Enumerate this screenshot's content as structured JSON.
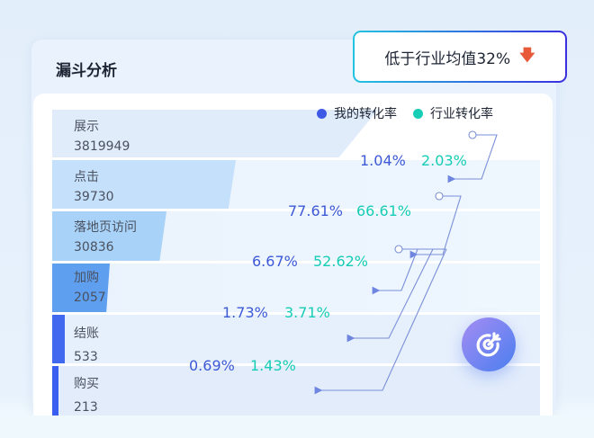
{
  "title": "漏斗分析",
  "badge": {
    "text": "低于行业均值32%",
    "icon": "arrow-down-icon"
  },
  "legend": {
    "mine": "我的转化率",
    "industry": "行业转化率"
  },
  "colors": {
    "mine": "#3d59d6",
    "industry": "#16cdb5",
    "down": "#e8593a"
  },
  "stages": [
    {
      "name": "展示",
      "value": "3819949"
    },
    {
      "name": "点击",
      "value": "39730"
    },
    {
      "name": "落地页访问",
      "value": "30836"
    },
    {
      "name": "加购",
      "value": "2057"
    },
    {
      "name": "结账",
      "value": "533"
    },
    {
      "name": "购买",
      "value": "213"
    }
  ],
  "rates": [
    {
      "mine": "1.04%",
      "industry": "2.03%"
    },
    {
      "mine": "77.61%",
      "industry": "66.61%"
    },
    {
      "mine": "6.67%",
      "industry": "52.62%"
    },
    {
      "mine": "1.73%",
      "industry": "3.71%"
    },
    {
      "mine": "0.69%",
      "industry": "1.43%"
    }
  ],
  "target_button": {
    "icon": "target-icon"
  }
}
